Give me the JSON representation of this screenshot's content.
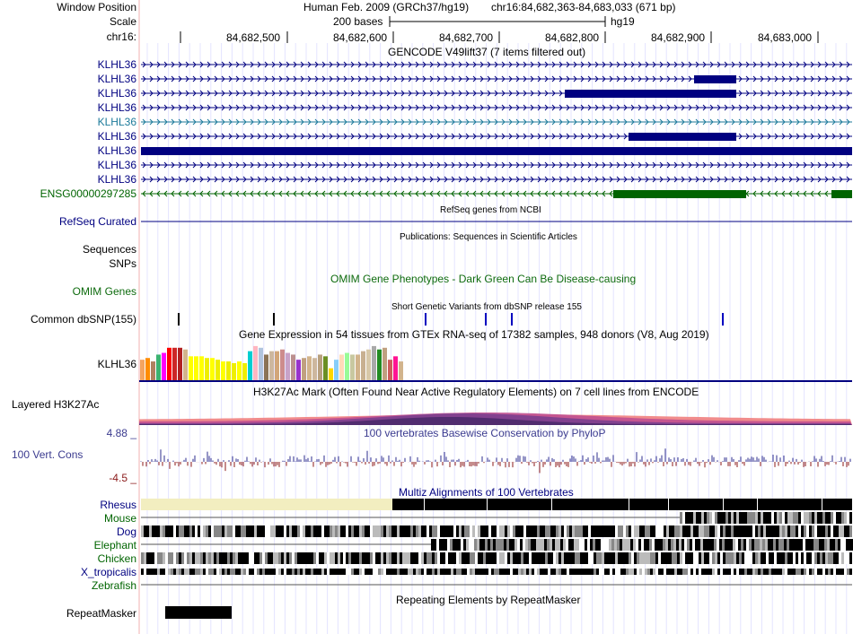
{
  "header": {
    "position_label": "Window Position",
    "scale_label": "Scale",
    "chrom_label": "chr16:",
    "assembly": "Human Feb. 2009 (GRCh37/hg19)",
    "position": "chr16:84,682,363-84,683,033 (671 bp)",
    "scale_text": "200 bases",
    "scale_db": "hg19",
    "ticks": [
      "84,682,500",
      "84,682,600",
      "84,682,700",
      "84,682,800",
      "84,682,900",
      "84,683,000"
    ]
  },
  "gencode": {
    "title": "GENCODE V49lift37 (7 items filtered out)",
    "items": [
      {
        "label": "KLHL36",
        "color": "#000080"
      },
      {
        "label": "KLHL36",
        "color": "#000080"
      },
      {
        "label": "KLHL36",
        "color": "#000080"
      },
      {
        "label": "KLHL36",
        "color": "#000080"
      },
      {
        "label": "KLHL36",
        "color": "#1c7a9a"
      },
      {
        "label": "KLHL36",
        "color": "#000080"
      },
      {
        "label": "KLHL36",
        "color": "#000080"
      },
      {
        "label": "KLHL36",
        "color": "#000080"
      },
      {
        "label": "KLHL36",
        "color": "#000080"
      },
      {
        "label": "ENSG00000297285",
        "color": "#006400"
      }
    ]
  },
  "refseq": {
    "label": "RefSeq Curated",
    "title": "RefSeq genes from NCBI"
  },
  "pubs": {
    "title": "Publications: Sequences in Scientific Articles",
    "label_seq": "Sequences",
    "label_snps": "SNPs"
  },
  "omim": {
    "label": "OMIM Genes",
    "title": "OMIM Gene Phenotypes - Dark Green Can Be Disease-causing"
  },
  "dbsnp": {
    "label": "Common dbSNP(155)",
    "title": "Short Genetic Variants from dbSNP release 155"
  },
  "gtex": {
    "label": "KLHL36",
    "title": "Gene Expression in 54 tissues from GTEx RNA-seq of 17382 samples, 948 donors (V8, Aug 2019)",
    "bar_colors": [
      "#f4a460",
      "#ff8c00",
      "#b08060",
      "#3cb371",
      "#ff00ff",
      "#ff0000",
      "#cd2626",
      "#b22222",
      "#d2b48c",
      "#ffff00",
      "#ffff00",
      "#ffff00",
      "#eeee00",
      "#ffff00",
      "#eeee00",
      "#ffff00",
      "#eeee00",
      "#eeee00",
      "#ffff00",
      "#eeee00",
      "#00ced1",
      "#ffb6c1",
      "#b0c4de",
      "#8b7355",
      "#cdb79e",
      "#d2a679",
      "#cd8c8c",
      "#c8a2c8",
      "#bc8f8f",
      "#9932cc",
      "#c0a080",
      "#d2b48c",
      "#cdb79e",
      "#b8a07e",
      "#6b8e23",
      "#ffd700",
      "#87cefa",
      "#ffdab9",
      "#98fb98",
      "#c8c8a0",
      "#d2b48c",
      "#c8b090",
      "#d8c8a8",
      "#a9a9a9",
      "#228b22",
      "#c0a080",
      "#cd5c5c",
      "#ff1493",
      "#d2b48c"
    ],
    "bar_values": [
      24,
      26,
      22,
      30,
      32,
      38,
      38,
      38,
      36,
      28,
      28,
      28,
      26,
      26,
      24,
      22,
      22,
      20,
      22,
      20,
      34,
      40,
      38,
      30,
      34,
      34,
      36,
      32,
      30,
      24,
      26,
      28,
      26,
      30,
      28,
      14,
      24,
      30,
      32,
      30,
      30,
      34,
      36,
      40,
      36,
      38,
      24,
      28,
      22
    ],
    "y_max": 42
  },
  "h3k27ac": {
    "label": "Layered H3K27Ac",
    "title": "H3K27Ac Mark (Often Found Near Active Regulatory Elements) on 7 cell lines from ENCODE"
  },
  "cons": {
    "label": "100 Vert. Cons",
    "max_label": "4.88 _",
    "min_label": "-4.5 _",
    "title": "100 vertebrates Basewise Conservation by PhyloP"
  },
  "multiz": {
    "title": "Multiz Alignments of 100 Vertebrates",
    "species": [
      {
        "name": "Rhesus",
        "color": "#000080"
      },
      {
        "name": "Mouse",
        "color": "#006400"
      },
      {
        "name": "Dog",
        "color": "#000080"
      },
      {
        "name": "Elephant",
        "color": "#006400"
      },
      {
        "name": "Chicken",
        "color": "#006400"
      },
      {
        "name": "X_tropicalis",
        "color": "#000080"
      },
      {
        "name": "Zebrafish",
        "color": "#006400"
      }
    ]
  },
  "repeatmasker": {
    "label": "RepeatMasker",
    "title": "Repeating Elements by RepeatMasker"
  }
}
